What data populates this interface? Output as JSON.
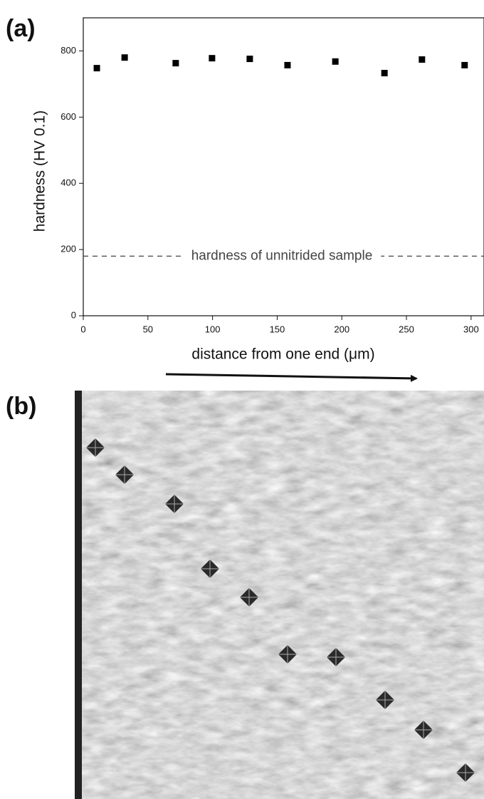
{
  "chart_data": {
    "type": "scatter",
    "panel_labels": [
      "(a)",
      "(b)"
    ],
    "xlabel": "distance from one end (μm)",
    "ylabel": "hardness (HV 0.1)",
    "x": [
      10.5,
      32,
      71.5,
      99.6,
      128.8,
      158,
      195,
      233,
      262,
      295
    ],
    "values": [
      748,
      780,
      763,
      778,
      776,
      757,
      768,
      733,
      774,
      757
    ],
    "color": "#000000",
    "xlim": [
      0,
      310
    ],
    "xticks": [
      0,
      50,
      100,
      150,
      200,
      250,
      300
    ],
    "ylim": [
      0,
      900
    ],
    "yticks": [
      0,
      200,
      400,
      600,
      800
    ],
    "reference_line": {
      "value": 180,
      "label": "hardness of unnitrided sample",
      "color": "#444444"
    }
  }
}
